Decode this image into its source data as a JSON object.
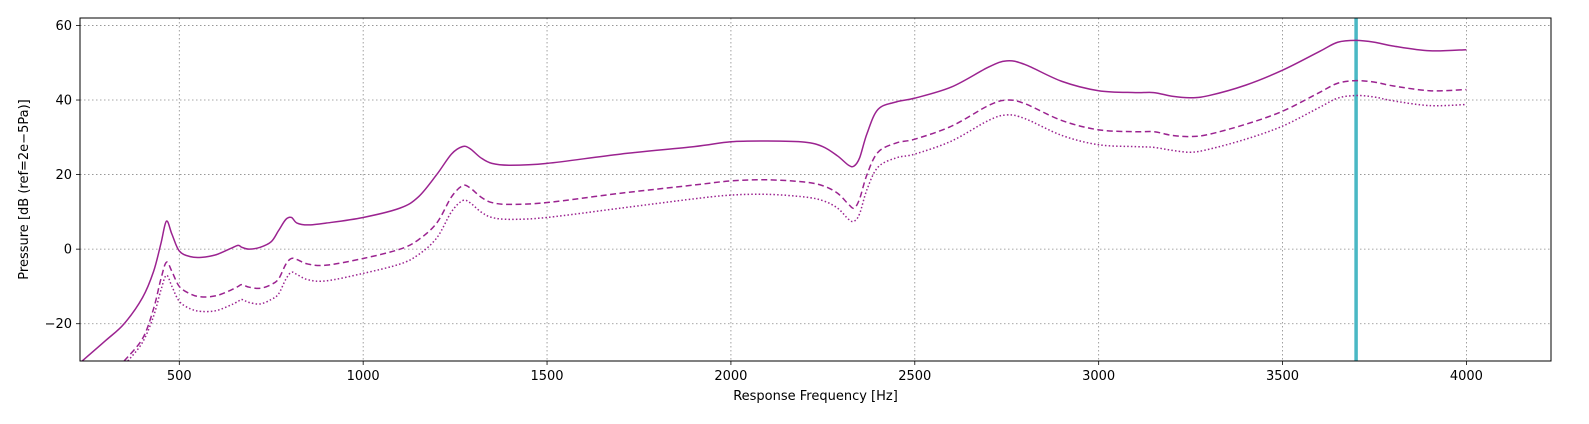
{
  "chart_data": {
    "type": "line",
    "title": "",
    "xlabel": "Response Frequency [Hz]",
    "ylabel": "Pressure [dB (ref=2e−5Pa)]",
    "xlim": [
      230,
      4230
    ],
    "ylim": [
      -30,
      62
    ],
    "xticks": [
      500,
      1000,
      1500,
      2000,
      2500,
      3000,
      3500,
      4000
    ],
    "xtick_labels": [
      "500",
      "1000",
      "1500",
      "2000",
      "2500",
      "3000",
      "3500",
      "4000"
    ],
    "yticks": [
      -20,
      0,
      20,
      40,
      60
    ],
    "ytick_labels": [
      "−20",
      "0",
      "20",
      "40",
      "60"
    ],
    "grid": true,
    "legend": "none",
    "marker_line": {
      "x": 3700,
      "color": "#4ab8c4"
    },
    "series": [
      {
        "style": "solid",
        "color": "#9b2390",
        "x": [
          230,
          300,
          350,
          400,
          430,
          450,
          465,
          480,
          500,
          530,
          560,
          600,
          640,
          660,
          670,
          690,
          720,
          750,
          770,
          790,
          805,
          820,
          850,
          900,
          1000,
          1100,
          1150,
          1200,
          1240,
          1270,
          1290,
          1320,
          1350,
          1400,
          1500,
          1700,
          1900,
          2000,
          2100,
          2200,
          2250,
          2290,
          2320,
          2335,
          2350,
          2370,
          2400,
          2450,
          2500,
          2600,
          2700,
          2750,
          2800,
          2900,
          3000,
          3100,
          3150,
          3200,
          3250,
          3300,
          3400,
          3500,
          3600,
          3650,
          3700,
          3750,
          3800,
          3900,
          4000
        ],
        "y": [
          -30.5,
          -24.5,
          -20,
          -13,
          -6,
          1.5,
          7.5,
          4,
          -0.5,
          -2,
          -2.2,
          -1.5,
          0.2,
          1,
          0.5,
          0,
          0.5,
          2,
          5,
          8,
          8.5,
          7,
          6.5,
          7,
          8.5,
          11,
          14,
          20,
          25.5,
          27.5,
          27,
          24.5,
          23,
          22.5,
          23,
          25.5,
          27.5,
          28.8,
          29,
          28.7,
          27.5,
          25,
          22.5,
          22.3,
          24.5,
          31,
          37.5,
          39.5,
          40.5,
          43.5,
          48.8,
          50.5,
          49.5,
          45,
          42.5,
          42,
          42,
          41,
          40.6,
          41.2,
          44,
          48,
          53,
          55.5,
          56,
          55.5,
          54.5,
          53.2,
          53.5
        ]
      },
      {
        "style": "dashed",
        "color": "#9b2390",
        "x": [
          350,
          400,
          430,
          450,
          465,
          480,
          500,
          530,
          560,
          600,
          640,
          660,
          670,
          690,
          720,
          750,
          770,
          790,
          805,
          820,
          850,
          900,
          1000,
          1100,
          1150,
          1200,
          1240,
          1270,
          1290,
          1320,
          1350,
          1400,
          1500,
          1700,
          1900,
          2000,
          2100,
          2200,
          2250,
          2290,
          2320,
          2335,
          2350,
          2370,
          2400,
          2450,
          2500,
          2600,
          2700,
          2750,
          2800,
          2900,
          3000,
          3100,
          3150,
          3200,
          3250,
          3300,
          3400,
          3500,
          3600,
          3650,
          3700,
          3750,
          3800,
          3900,
          4000
        ],
        "y": [
          -30,
          -24,
          -16,
          -8,
          -3.5,
          -6,
          -10,
          -12,
          -12.8,
          -12.5,
          -11,
          -10,
          -9.5,
          -10.2,
          -10.5,
          -9.5,
          -8,
          -4,
          -2.5,
          -2.8,
          -4,
          -4.3,
          -2.5,
          0,
          2.5,
          7,
          14,
          17,
          16.5,
          14,
          12.5,
          12,
          12.5,
          15,
          17.2,
          18.3,
          18.6,
          18,
          17,
          15,
          12,
          11,
          13.5,
          20,
          26,
          28.5,
          29.5,
          33,
          38.5,
          40,
          39,
          34.5,
          32,
          31.5,
          31.5,
          30.5,
          30.2,
          30.8,
          33.5,
          37,
          42,
          44.5,
          45.2,
          44.8,
          43.8,
          42.5,
          42.8
        ]
      },
      {
        "style": "dotted",
        "color": "#9b2390",
        "x": [
          360,
          400,
          430,
          450,
          465,
          480,
          500,
          530,
          560,
          600,
          640,
          660,
          670,
          690,
          720,
          750,
          770,
          790,
          805,
          820,
          850,
          900,
          1000,
          1100,
          1150,
          1200,
          1240,
          1270,
          1290,
          1320,
          1350,
          1400,
          1500,
          1700,
          1900,
          2000,
          2100,
          2200,
          2250,
          2290,
          2320,
          2335,
          2350,
          2370,
          2400,
          2450,
          2500,
          2600,
          2700,
          2750,
          2800,
          2900,
          3000,
          3100,
          3150,
          3200,
          3250,
          3300,
          3400,
          3500,
          3600,
          3650,
          3700,
          3750,
          3800,
          3900,
          4000
        ],
        "y": [
          -30,
          -25,
          -18,
          -11,
          -7,
          -10,
          -14,
          -16,
          -16.7,
          -16.5,
          -15,
          -14,
          -13.5,
          -14.3,
          -14.7,
          -13.5,
          -12,
          -8,
          -6.2,
          -6.8,
          -8.2,
          -8.5,
          -6.5,
          -4,
          -1.5,
          3,
          10,
          13,
          12.5,
          10,
          8.5,
          8,
          8.5,
          11,
          13.5,
          14.5,
          14.7,
          14,
          13,
          11,
          8,
          7.5,
          9.5,
          16,
          22,
          24.5,
          25.5,
          29,
          34.5,
          36,
          35,
          30.5,
          28,
          27.5,
          27.3,
          26.5,
          26,
          26.8,
          29.5,
          33,
          38,
          40.5,
          41.2,
          40.8,
          39.8,
          38.5,
          38.8
        ]
      }
    ]
  }
}
